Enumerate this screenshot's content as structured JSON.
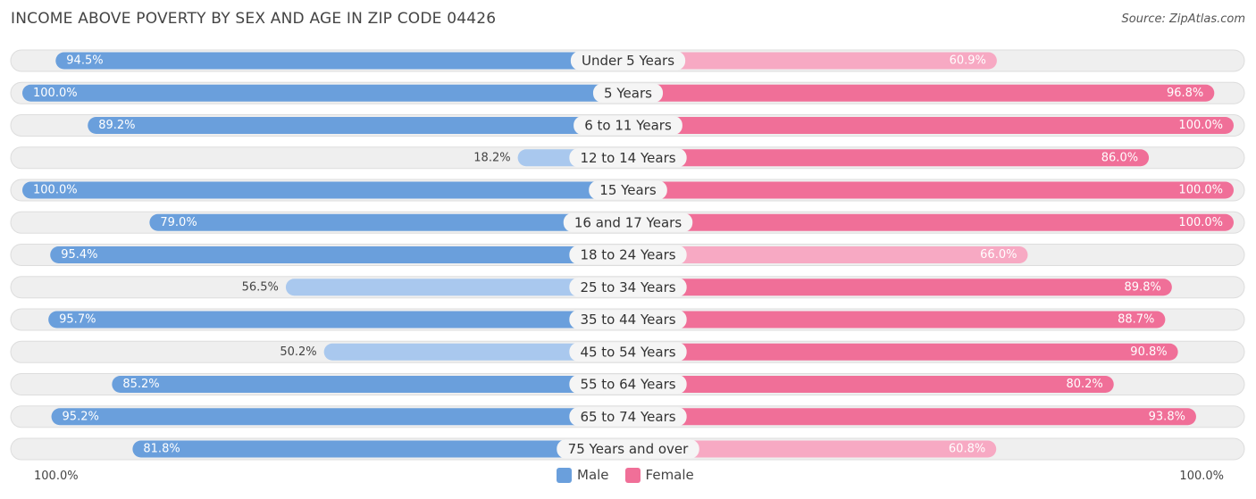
{
  "title": "INCOME ABOVE POVERTY BY SEX AND AGE IN ZIP CODE 04426",
  "source": "Source: ZipAtlas.com",
  "colors": {
    "male_strong": "#6a9fdc",
    "male_light": "#a9c8ee",
    "female_strong": "#f06f98",
    "female_light": "#f7a9c3"
  },
  "legend": {
    "male": "Male",
    "female": "Female"
  },
  "axis": {
    "left_label": "100.0%",
    "right_label": "100.0%"
  },
  "chart_data": {
    "type": "bar",
    "orientation": "horizontal-diverging",
    "categories": [
      "Under 5 Years",
      "5 Years",
      "6 to 11 Years",
      "12 to 14 Years",
      "15 Years",
      "16 and 17 Years",
      "18 to 24 Years",
      "25 to 34 Years",
      "35 to 44 Years",
      "45 to 54 Years",
      "55 to 64 Years",
      "65 to 74 Years",
      "75 Years and over"
    ],
    "series": [
      {
        "name": "Male",
        "values": [
          94.5,
          100.0,
          89.2,
          18.2,
          100.0,
          79.0,
          95.4,
          56.5,
          95.7,
          50.2,
          85.2,
          95.2,
          81.8
        ]
      },
      {
        "name": "Female",
        "values": [
          60.9,
          96.8,
          100.0,
          86.0,
          100.0,
          100.0,
          66.0,
          89.8,
          88.7,
          90.8,
          80.2,
          93.8,
          60.8
        ]
      }
    ],
    "value_labels": {
      "male": [
        "94.5%",
        "100.0%",
        "89.2%",
        "18.2%",
        "100.0%",
        "79.0%",
        "95.4%",
        "56.5%",
        "95.7%",
        "50.2%",
        "85.2%",
        "95.2%",
        "81.8%"
      ],
      "female": [
        "60.9%",
        "96.8%",
        "100.0%",
        "86.0%",
        "100.0%",
        "100.0%",
        "66.0%",
        "89.8%",
        "88.7%",
        "90.8%",
        "80.2%",
        "93.8%",
        "60.8%"
      ]
    },
    "xlim": [
      -100,
      100
    ],
    "grid": false,
    "legend_position": "bottom-center"
  }
}
